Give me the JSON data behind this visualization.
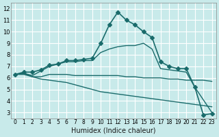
{
  "title": "",
  "xlabel": "Humidex (Indice chaleur)",
  "ylabel": "",
  "bg_color": "#c8eaea",
  "grid_color": "#ffffff",
  "line_color": "#1a6b6b",
  "x_ticks": [
    0,
    1,
    2,
    3,
    4,
    5,
    6,
    7,
    8,
    9,
    10,
    11,
    12,
    13,
    14,
    15,
    16,
    17,
    18,
    19,
    20,
    21,
    22,
    23
  ],
  "y_ticks": [
    3,
    4,
    5,
    6,
    7,
    8,
    9,
    10,
    11,
    12
  ],
  "xlim": [
    -0.5,
    23.5
  ],
  "ylim": [
    2.5,
    12.5
  ],
  "series": [
    {
      "x": [
        0,
        1,
        2,
        3,
        4,
        5,
        6,
        7,
        8,
        9,
        10,
        11,
        12,
        13,
        14,
        15,
        16,
        17,
        18,
        19,
        20,
        21,
        22,
        23
      ],
      "y": [
        6.3,
        6.5,
        6.5,
        6.7,
        7.1,
        7.2,
        7.5,
        7.5,
        7.6,
        7.7,
        9.0,
        10.6,
        11.7,
        11.0,
        10.6,
        10.0,
        9.5,
        7.4,
        7.0,
        6.8,
        6.8,
        5.2,
        2.8,
        2.9
      ],
      "marker": "D",
      "markersize": 3,
      "linewidth": 1.2
    },
    {
      "x": [
        0,
        1,
        2,
        3,
        4,
        5,
        6,
        7,
        8,
        9,
        10,
        11,
        12,
        13,
        14,
        15,
        16,
        17,
        18,
        19,
        20,
        21,
        22,
        23
      ],
      "y": [
        6.3,
        6.4,
        6.1,
        6.1,
        6.3,
        6.3,
        6.3,
        6.2,
        6.2,
        6.2,
        6.2,
        6.2,
        6.2,
        6.1,
        6.1,
        6.0,
        6.0,
        6.0,
        5.9,
        5.9,
        5.8,
        5.8,
        5.8,
        5.7
      ],
      "marker": null,
      "markersize": 0,
      "linewidth": 1.0
    },
    {
      "x": [
        0,
        1,
        2,
        3,
        4,
        5,
        6,
        7,
        8,
        9,
        10,
        11,
        12,
        13,
        14,
        15,
        16,
        17,
        18,
        19,
        20,
        21,
        22,
        23
      ],
      "y": [
        6.3,
        6.4,
        6.2,
        6.6,
        7.0,
        7.2,
        7.4,
        7.4,
        7.5,
        7.5,
        8.2,
        8.5,
        8.7,
        8.8,
        8.8,
        9.0,
        8.5,
        6.8,
        6.7,
        6.6,
        6.5,
        5.2,
        4.1,
        3.0
      ],
      "marker": null,
      "markersize": 0,
      "linewidth": 1.0
    },
    {
      "x": [
        0,
        1,
        2,
        3,
        4,
        5,
        6,
        7,
        8,
        9,
        10,
        11,
        12,
        13,
        14,
        15,
        16,
        17,
        18,
        19,
        20,
        21,
        22,
        23
      ],
      "y": [
        6.3,
        6.3,
        6.1,
        5.9,
        5.8,
        5.7,
        5.6,
        5.4,
        5.2,
        5.0,
        4.8,
        4.7,
        4.6,
        4.5,
        4.4,
        4.3,
        4.2,
        4.1,
        4.0,
        3.9,
        3.8,
        3.7,
        3.6,
        3.5
      ],
      "marker": null,
      "markersize": 0,
      "linewidth": 1.0
    }
  ]
}
